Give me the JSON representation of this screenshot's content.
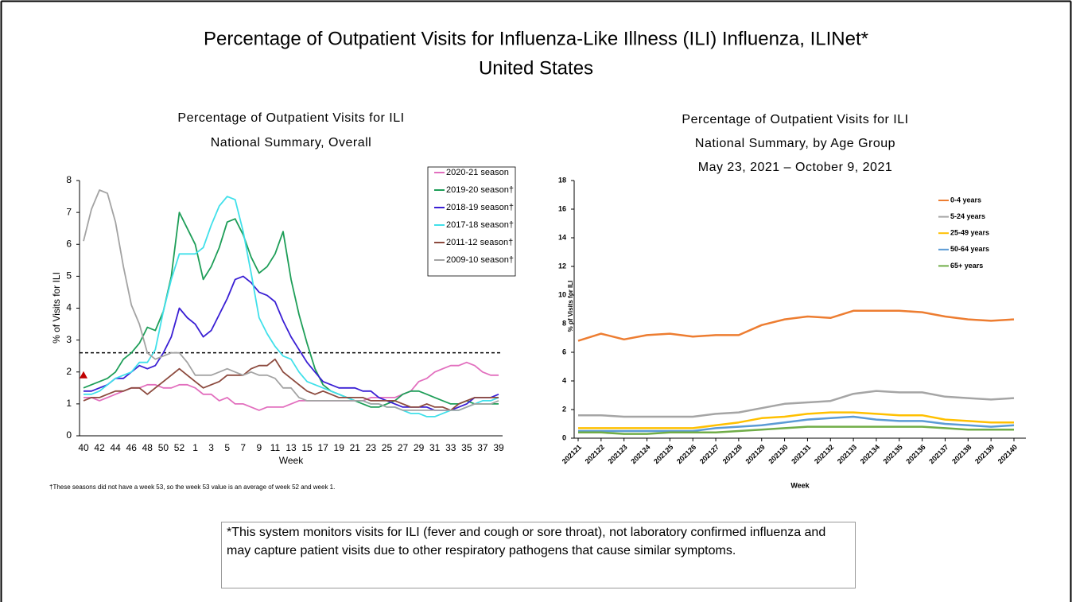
{
  "title": [
    "Percentage of Outpatient Visits for Influenza-Like Illness (ILI) Influenza, ILINet*",
    "United States"
  ],
  "chart_data": [
    {
      "type": "line",
      "title": [
        "Percentage of Outpatient Visits for ILI",
        "National Summary, Overall"
      ],
      "x_label": "Week",
      "y_label": "% of Visits for ILI",
      "categories": [
        "40",
        null,
        "42",
        null,
        "44",
        null,
        "46",
        null,
        "48",
        null,
        "50",
        null,
        "52",
        null,
        "1",
        null,
        "3",
        null,
        "5",
        null,
        "7",
        null,
        "9",
        null,
        "11",
        null,
        "13",
        null,
        "15",
        null,
        "17",
        null,
        "19",
        null,
        "21",
        null,
        "23",
        null,
        "25",
        null,
        "27",
        null,
        "29",
        null,
        "31",
        null,
        "33",
        null,
        "35",
        null,
        "37",
        null,
        "39"
      ],
      "ylim": [
        0,
        8
      ],
      "yticks": [
        0,
        1,
        2,
        3,
        4,
        5,
        6,
        7,
        8
      ],
      "grid": false,
      "legend": "upper right",
      "reference_line": 2.6,
      "highlight_value": 1.9,
      "series": [
        {
          "name": "2020-21 season",
          "color": "#e26fbe",
          "values": [
            1.2,
            1.2,
            1.1,
            1.2,
            1.3,
            1.4,
            1.5,
            1.5,
            1.6,
            1.6,
            1.5,
            1.5,
            1.6,
            1.6,
            1.5,
            1.3,
            1.3,
            1.1,
            1.2,
            1.0,
            1.0,
            0.9,
            0.8,
            0.9,
            0.9,
            0.9,
            1.0,
            1.1,
            1.1,
            1.1,
            1.1,
            1.1,
            1.1,
            1.1,
            1.1,
            1.1,
            1.2,
            1.2,
            1.2,
            1.2,
            1.3,
            1.4,
            1.7,
            1.8,
            2.0,
            2.1,
            2.2,
            2.2,
            2.3,
            2.2,
            2.0,
            1.9,
            1.9
          ]
        },
        {
          "name": "2019-20 season†",
          "color": "#1e9e58",
          "values": [
            1.5,
            1.6,
            1.7,
            1.8,
            2.0,
            2.4,
            2.6,
            2.9,
            3.4,
            3.3,
            3.9,
            5.0,
            7.0,
            6.5,
            6.0,
            4.9,
            5.3,
            5.9,
            6.7,
            6.8,
            6.3,
            5.6,
            5.1,
            5.3,
            5.7,
            6.4,
            4.9,
            3.8,
            2.9,
            2.1,
            1.6,
            1.4,
            1.3,
            1.2,
            1.1,
            1.0,
            0.9,
            0.9,
            1.0,
            1.1,
            1.3,
            1.4,
            1.4,
            1.3,
            1.2,
            1.1,
            1.0,
            1.0,
            1.1,
            1.0,
            1.0,
            1.0,
            1.0
          ]
        },
        {
          "name": "2018-19 season†",
          "color": "#3a1fd4",
          "values": [
            1.4,
            1.4,
            1.5,
            1.6,
            1.8,
            1.8,
            2.0,
            2.2,
            2.1,
            2.2,
            2.6,
            3.1,
            4.0,
            3.7,
            3.5,
            3.1,
            3.3,
            3.8,
            4.3,
            4.9,
            5.0,
            4.8,
            4.5,
            4.4,
            4.2,
            3.6,
            3.1,
            2.7,
            2.3,
            2.0,
            1.7,
            1.6,
            1.5,
            1.5,
            1.5,
            1.4,
            1.4,
            1.2,
            1.1,
            1.0,
            0.9,
            0.9,
            0.9,
            0.9,
            0.8,
            0.8,
            0.8,
            0.9,
            1.0,
            1.2,
            1.2,
            1.2,
            1.3
          ]
        },
        {
          "name": "2017-18 season†",
          "color": "#40e0ea",
          "values": [
            1.3,
            1.3,
            1.4,
            1.6,
            1.8,
            1.9,
            2.0,
            2.3,
            2.3,
            2.7,
            3.9,
            4.9,
            5.7,
            5.7,
            5.7,
            5.9,
            6.6,
            7.2,
            7.5,
            7.4,
            6.4,
            5.1,
            3.7,
            3.2,
            2.8,
            2.5,
            2.4,
            2.0,
            1.7,
            1.6,
            1.5,
            1.4,
            1.3,
            1.2,
            1.1,
            1.1,
            1.0,
            1.0,
            0.9,
            0.9,
            0.8,
            0.7,
            0.7,
            0.6,
            0.6,
            0.7,
            0.8,
            0.8,
            0.9,
            1.0,
            1.1,
            1.1,
            1.2
          ]
        },
        {
          "name": "2011-12 season†",
          "color": "#8c4a3e",
          "values": [
            1.1,
            1.2,
            1.2,
            1.3,
            1.4,
            1.4,
            1.5,
            1.5,
            1.3,
            1.5,
            1.7,
            1.9,
            2.1,
            1.9,
            1.7,
            1.5,
            1.6,
            1.7,
            1.9,
            1.9,
            1.9,
            2.1,
            2.2,
            2.2,
            2.4,
            2.0,
            1.8,
            1.6,
            1.4,
            1.3,
            1.4,
            1.3,
            1.2,
            1.2,
            1.2,
            1.2,
            1.1,
            1.1,
            1.1,
            1.1,
            1.0,
            0.9,
            0.9,
            1.0,
            0.9,
            0.9,
            0.8,
            1.0,
            1.1,
            1.2,
            1.2,
            1.2,
            1.2
          ]
        },
        {
          "name": "2009-10 season†",
          "color": "#a3a3a3",
          "values": [
            6.1,
            7.1,
            7.7,
            7.6,
            6.7,
            5.3,
            4.1,
            3.5,
            2.6,
            2.4,
            2.5,
            2.6,
            2.6,
            2.3,
            1.9,
            1.9,
            1.9,
            2.0,
            2.1,
            2.0,
            1.9,
            2.0,
            1.9,
            1.9,
            1.8,
            1.5,
            1.5,
            1.2,
            1.1,
            1.1,
            1.1,
            1.1,
            1.1,
            1.1,
            1.1,
            1.1,
            1.0,
            1.0,
            0.9,
            0.9,
            0.8,
            0.8,
            0.8,
            0.8,
            0.8,
            0.8,
            0.8,
            0.8,
            0.9,
            1.0,
            1.0,
            1.0,
            1.1
          ]
        }
      ],
      "footnote": "†These seasons did not have a week 53, so the week 53 value is an average of week 52 and week 1."
    },
    {
      "type": "line",
      "title": [
        "Percentage of Outpatient Visits for ILI",
        "National Summary, by Age Group",
        "May 23, 2021 – October 9, 2021"
      ],
      "x_label": "Week",
      "y_label": "% of Visits for ILI",
      "categories": [
        "202121",
        "202122",
        "202123",
        "202124",
        "202125",
        "202126",
        "202127",
        "202128",
        "202129",
        "202130",
        "202131",
        "202132",
        "202133",
        "202134",
        "202135",
        "202136",
        "202137",
        "202138",
        "202139",
        "202140"
      ],
      "ylim": [
        0,
        18
      ],
      "yticks": [
        0,
        2,
        4,
        6,
        8,
        10,
        12,
        14,
        16,
        18
      ],
      "grid": false,
      "legend": "upper right",
      "series": [
        {
          "name": "0-4 years",
          "color": "#ed7d31",
          "values": [
            6.8,
            7.3,
            6.9,
            7.2,
            7.3,
            7.1,
            7.2,
            7.2,
            7.9,
            8.3,
            8.5,
            8.4,
            8.9,
            8.9,
            8.9,
            8.8,
            8.5,
            8.3,
            8.2,
            8.3
          ]
        },
        {
          "name": "5-24 years",
          "color": "#a5a5a5",
          "values": [
            1.6,
            1.6,
            1.5,
            1.5,
            1.5,
            1.5,
            1.7,
            1.8,
            2.1,
            2.4,
            2.5,
            2.6,
            3.1,
            3.3,
            3.2,
            3.2,
            2.9,
            2.8,
            2.7,
            2.8
          ]
        },
        {
          "name": "25-49 years",
          "color": "#ffc000",
          "values": [
            0.7,
            0.7,
            0.7,
            0.7,
            0.7,
            0.7,
            0.9,
            1.1,
            1.4,
            1.5,
            1.7,
            1.8,
            1.8,
            1.7,
            1.6,
            1.6,
            1.3,
            1.2,
            1.1,
            1.1
          ]
        },
        {
          "name": "50-64 years",
          "color": "#5b9bd5",
          "values": [
            0.5,
            0.5,
            0.5,
            0.5,
            0.5,
            0.5,
            0.7,
            0.8,
            0.9,
            1.1,
            1.3,
            1.4,
            1.5,
            1.3,
            1.2,
            1.2,
            1.0,
            0.9,
            0.8,
            0.9
          ]
        },
        {
          "name": "65+ years",
          "color": "#70ad47",
          "values": [
            0.4,
            0.4,
            0.3,
            0.3,
            0.4,
            0.4,
            0.4,
            0.5,
            0.6,
            0.7,
            0.8,
            0.8,
            0.8,
            0.8,
            0.8,
            0.8,
            0.7,
            0.6,
            0.6,
            0.6
          ]
        }
      ]
    }
  ],
  "note": "*This system monitors visits for ILI (fever and cough or sore throat), not laboratory confirmed influenza and may capture patient visits due to other respiratory pathogens that cause similar symptoms."
}
